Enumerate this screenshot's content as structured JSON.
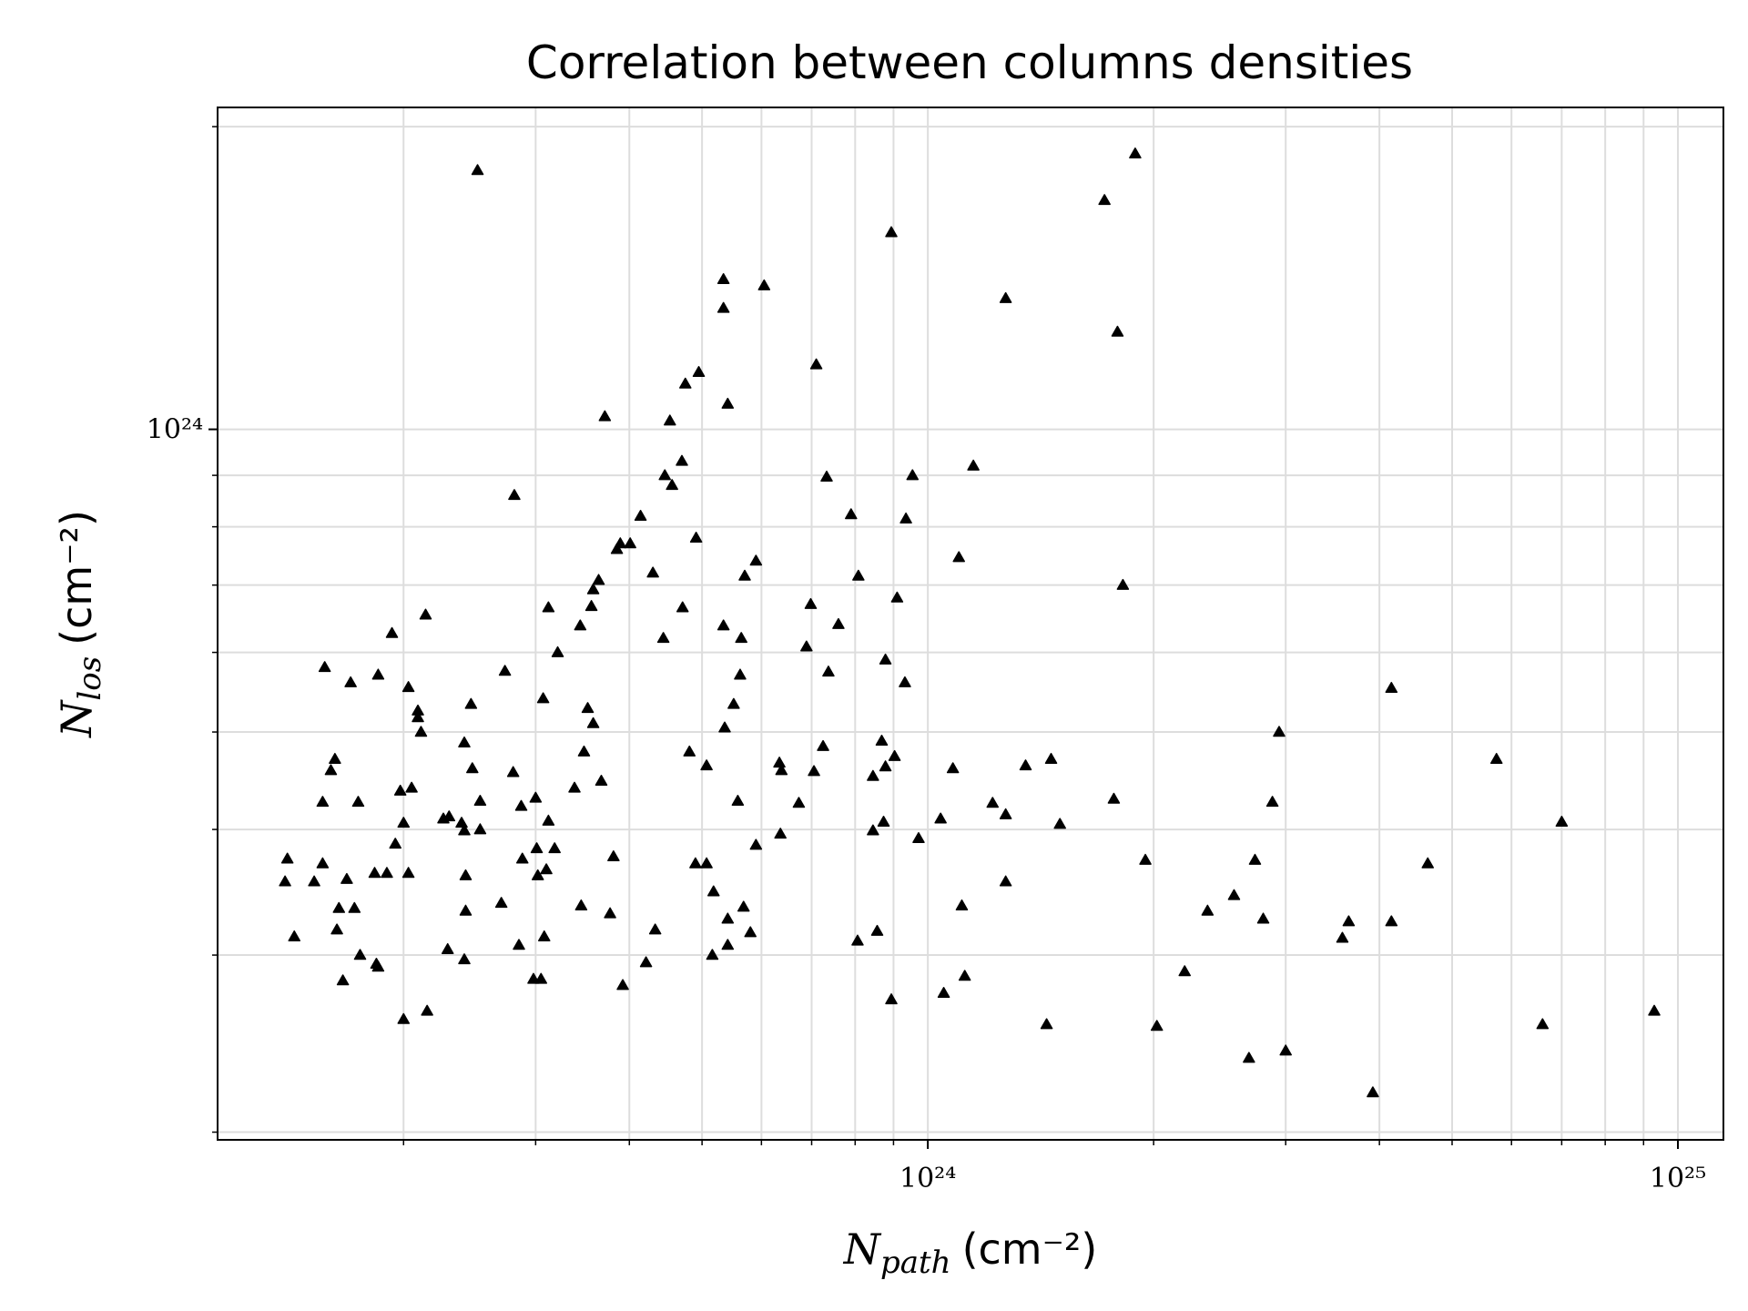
{
  "chart_data": {
    "type": "scatter",
    "title": "Correlation between columns densities",
    "xlabel": {
      "symbol": "N",
      "subscript": "path",
      "unit": "(cm⁻²)"
    },
    "ylabel": {
      "symbol": "N",
      "subscript": "los",
      "unit": "(cm⁻²)"
    },
    "xscale": "log",
    "yscale": "log",
    "grid": true,
    "color": "#000000",
    "marker": "triangle",
    "xlim": [
      1.13e+23,
      1.15e+25
    ],
    "ylim": [
      1.965e+23,
      2.09e+24
    ],
    "xticks": [
      {
        "value": 1e+24,
        "label": "10²⁴"
      },
      {
        "value": 1e+25,
        "label": "10²⁵"
      }
    ],
    "yticks": [
      {
        "value": 1e+24,
        "label": "10²⁴"
      }
    ],
    "xminorticks": [
      2e+23,
      3e+23,
      4e+23,
      5e+23,
      6e+23,
      7e+23,
      8e+23,
      9e+23,
      2e+24,
      3e+24,
      4e+24,
      5e+24,
      6e+24,
      7e+24,
      8e+24,
      9e+24
    ],
    "yminorticks": [
      2e+23,
      3e+23,
      4e+23,
      5e+23,
      6e+23,
      7e+23,
      8e+23,
      9e+23,
      2e+24
    ],
    "x": [
      1.4e+23,
      1.39e+23,
      1.43e+23,
      1.52e+23,
      1.56e+23,
      1.56e+23,
      1.57e+23,
      1.6e+23,
      1.62e+23,
      1.63e+23,
      1.64e+23,
      1.66e+23,
      1.68e+23,
      1.7e+23,
      1.72e+23,
      1.74e+23,
      1.75e+23,
      1.83e+23,
      1.84e+23,
      1.85e+23,
      1.85e+23,
      1.9e+23,
      1.93e+23,
      1.95e+23,
      1.98e+23,
      2e+23,
      2e+23,
      2.03e+23,
      2.03e+23,
      2.05e+23,
      2.09e+23,
      2.09e+23,
      2.11e+23,
      2.14e+23,
      2.15e+23,
      2.26e+23,
      2.29e+23,
      2.3e+23,
      2.39e+23,
      2.41e+23,
      2.41e+23,
      2.41e+23,
      2.42e+23,
      2.42e+23,
      2.46e+23,
      2.47e+23,
      2.51e+23,
      2.53e+23,
      2.53e+23,
      2.7e+23,
      2.73e+23,
      2.8e+23,
      2.81e+23,
      2.85e+23,
      2.87e+23,
      2.88e+23,
      2.98e+23,
      3e+23,
      3.01e+23,
      3.02e+23,
      3.05e+23,
      3.07e+23,
      3.08e+23,
      3.1e+23,
      3.12e+23,
      3.12e+23,
      3.18e+23,
      3.21e+23,
      3.38e+23,
      3.44e+23,
      3.45e+23,
      3.48e+23,
      3.52e+23,
      3.58e+23,
      3.56e+23,
      3.58e+23,
      3.64e+23,
      3.67e+23,
      3.71e+23,
      3.77e+23,
      3.81e+23,
      3.85e+23,
      3.89e+23,
      3.92e+23,
      4.01e+23,
      4.14e+23,
      4.21e+23,
      4.3e+23,
      4.33e+23,
      4.44e+23,
      4.46e+23,
      4.53e+23,
      4.56e+23,
      4.7e+23,
      4.71e+23,
      4.75e+23,
      4.81e+23,
      4.9e+23,
      4.91e+23,
      4.95e+23,
      5.07e+23,
      5.07e+23,
      5.16e+23,
      5.18e+23,
      5.34e+23,
      5.36e+23,
      5.34e+23,
      5.34e+23,
      5.41e+23,
      5.41e+23,
      5.41e+23,
      5.51e+23,
      5.58e+23,
      5.62e+23,
      5.64e+23,
      5.68e+23,
      5.7e+23,
      5.8e+23,
      5.9e+23,
      5.9e+23,
      6.05e+23,
      6.34e+23,
      6.36e+23,
      6.38e+23,
      6.73e+23,
      6.89e+23,
      6.98e+23,
      7.05e+23,
      7.1e+23,
      7.25e+23,
      7.33e+23,
      7.37e+23,
      7.6e+23,
      7.9e+23,
      8.06e+23,
      8.08e+23,
      8.45e+23,
      8.45e+23,
      8.56e+23,
      8.68e+23,
      8.73e+23,
      8.78e+23,
      8.78e+23,
      8.94e+23,
      8.94e+23,
      9.03e+23,
      9.1e+23,
      9.32e+23,
      9.35e+23,
      9.54e+23,
      9.72e+23,
      1.04e+24,
      1.05e+24,
      1.08e+24,
      1.1e+24,
      1.11e+24,
      1.12e+24,
      1.15e+24,
      1.22e+24,
      1.27e+24,
      1.27e+24,
      1.27e+24,
      1.35e+24,
      1.44e+24,
      1.46e+24,
      1.5e+24,
      1.72e+24,
      1.77e+24,
      1.79e+24,
      1.82e+24,
      1.89e+24,
      1.95e+24,
      2.02e+24,
      2.2e+24,
      2.36e+24,
      2.56e+24,
      2.68e+24,
      2.73e+24,
      2.8e+24,
      2.88e+24,
      2.94e+24,
      3e+24,
      3.57e+24,
      3.64e+24,
      3.92e+24,
      4.15e+24,
      4.15e+24,
      4.64e+24,
      5.73e+24,
      6.6e+24,
      7e+24,
      9.3e+24
    ],
    "values": [
      3.74e+23,
      3.55e+23,
      3.13e+23,
      3.55e+23,
      3.7e+23,
      4.26e+23,
      5.8e+23,
      4.58e+23,
      4.7e+23,
      3.18e+23,
      3.34e+23,
      2.83e+23,
      3.57e+23,
      5.6e+23,
      3.34e+23,
      4.26e+23,
      3e+23,
      3.62e+23,
      2.94e+23,
      2.92e+23,
      5.7e+23,
      3.62e+23,
      6.27e+23,
      3.87e+23,
      4.37e+23,
      4.06e+23,
      2.59e+23,
      3.62e+23,
      5.54e+23,
      4.4e+23,
      5.17e+23,
      5.25e+23,
      5e+23,
      6.54e+23,
      2.64e+23,
      4.1e+23,
      3.04e+23,
      4.12e+23,
      4.06e+23,
      3.99e+23,
      4.88e+23,
      2.97e+23,
      3.6e+23,
      3.32e+23,
      5.33e+23,
      4.6e+23,
      1.81e+24,
      4.27e+23,
      4e+23,
      3.38e+23,
      5.75e+23,
      4.56e+23,
      8.6e+23,
      3.07e+23,
      4.22e+23,
      3.74e+23,
      2.84e+23,
      4.3e+23,
      3.83e+23,
      3.6e+23,
      2.84e+23,
      5.4e+23,
      3.13e+23,
      3.65e+23,
      4.08e+23,
      6.65e+23,
      3.83e+23,
      6e+23,
      4.4e+23,
      6.38e+23,
      3.36e+23,
      4.78e+23,
      5.28e+23,
      5.1e+23,
      6.67e+23,
      6.93e+23,
      7.08e+23,
      4.47e+23,
      1.03e+24,
      3.3e+23,
      3.76e+23,
      7.6e+23,
      7.7e+23,
      2.8e+23,
      7.7e+23,
      8.2e+23,
      2.95e+23,
      7.2e+23,
      3.18e+23,
      6.2e+23,
      9e+23,
      1.02e+24,
      8.8e+23,
      9.3e+23,
      6.65e+23,
      1.11e+24,
      4.78e+23,
      3.7e+23,
      7.8e+23,
      1.14e+24,
      4.63e+23,
      3.7e+23,
      3e+23,
      3.47e+23,
      6.38e+23,
      5.05e+23,
      1.41e+24,
      1.32e+24,
      1.06e+24,
      3.26e+23,
      3.07e+23,
      5.33e+23,
      4.27e+23,
      5.7e+23,
      6.2e+23,
      3.35e+23,
      7.15e+23,
      3.16e+23,
      7.4e+23,
      3.86e+23,
      1.39e+24,
      4.66e+23,
      3.96e+23,
      4.58e+23,
      4.25e+23,
      6.08e+23,
      6.7e+23,
      4.57e+23,
      1.16e+24,
      4.84e+23,
      8.97e+23,
      5.74e+23,
      6.4e+23,
      8.23e+23,
      3.1e+23,
      7.15e+23,
      3.99e+23,
      4.52e+23,
      3.17e+23,
      4.9e+23,
      4.07e+23,
      4.62e+23,
      5.9e+23,
      2.71e+23,
      1.57e+24,
      4.73e+23,
      6.8e+23,
      5.6e+23,
      8.15e+23,
      9e+23,
      3.92e+23,
      4.1e+23,
      2.75e+23,
      4.6e+23,
      7.46e+23,
      3.36e+23,
      2.86e+23,
      9.2e+23,
      4.25e+23,
      4.14e+23,
      1.35e+24,
      3.55e+23,
      4.63e+23,
      2.56e+23,
      4.7e+23,
      4.05e+23,
      1.69e+24,
      4.29e+23,
      1.25e+24,
      7e+23,
      1.88e+24,
      3.73e+23,
      2.55e+23,
      2.89e+23,
      3.32e+23,
      3.44e+23,
      2.37e+23,
      3.73e+23,
      3.26e+23,
      4.26e+23,
      5e+23,
      2.41e+23,
      3.12e+23,
      3.24e+23,
      2.19e+23,
      5.53e+23,
      3.24e+23,
      3.7e+23,
      4.7e+23,
      2.56e+23,
      4.07e+23,
      2.64e+23
    ]
  }
}
